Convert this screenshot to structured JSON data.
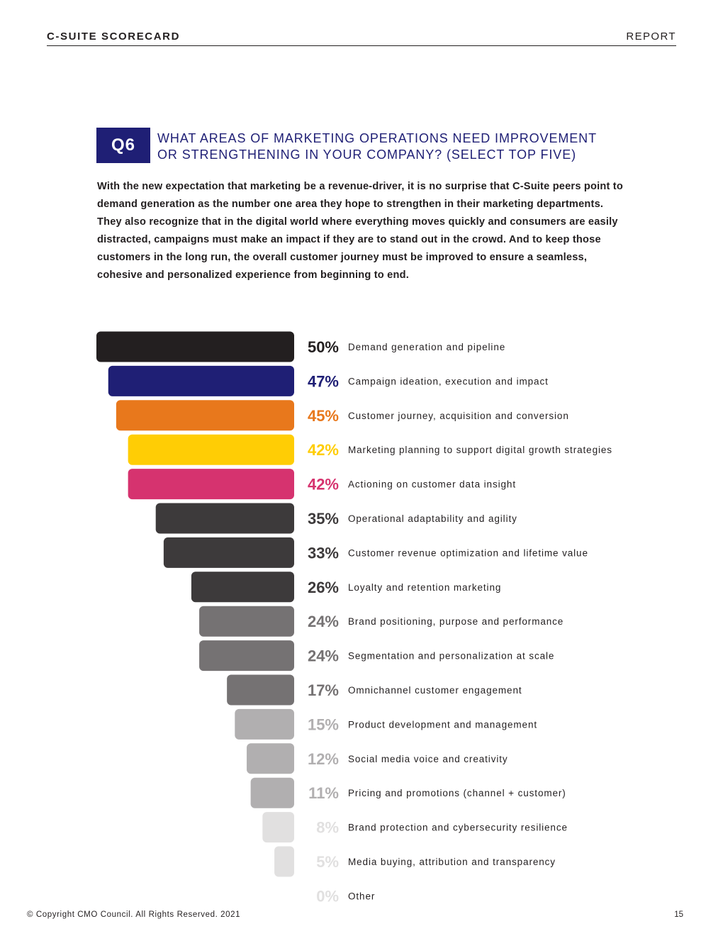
{
  "header": {
    "left": "C-SUITE SCORECARD",
    "right": "REPORT"
  },
  "question": {
    "badge": "Q6",
    "title": "WHAT AREAS OF MARKETING OPERATIONS NEED IMPROVEMENT\nOR STRENGTHENING IN YOUR COMPANY? (SELECT TOP FIVE)",
    "intro": "With the new expectation that marketing be a revenue-driver, it is no surprise that C-Suite peers point to demand generation as the number one area they hope to strengthen in their marketing departments. They also recognize that in the digital world where everything moves quickly and consumers are easily distracted, campaigns must make an impact if they are to stand out in the crowd. And to keep those customers in the long run, the overall customer journey must be improved to ensure a seamless, cohesive and personalized experience from beginning to end."
  },
  "colors": {
    "navy": "#1f1f75"
  },
  "chart_data": {
    "type": "bar",
    "orientation": "horizontal",
    "bar_alignment": "right-aligned",
    "categories": [
      "Demand generation and pipeline",
      "Campaign ideation, execution and impact",
      "Customer journey, acquisition and conversion",
      "Marketing planning to support digital growth strategies",
      "Actioning on customer data insight",
      "Operational adaptability and agility",
      "Customer revenue optimization and lifetime value",
      "Loyalty and retention marketing",
      "Brand positioning, purpose and performance",
      "Segmentation and personalization at scale",
      "Omnichannel customer engagement",
      "Product development and management",
      "Social media voice and creativity",
      "Pricing and promotions (channel + customer)",
      "Brand protection and cybersecurity resilience",
      "Media buying, attribution and transparency",
      "Other"
    ],
    "values": [
      50,
      47,
      45,
      42,
      42,
      35,
      33,
      26,
      24,
      24,
      17,
      15,
      12,
      11,
      8,
      5,
      0
    ],
    "labels": [
      "50%",
      "47%",
      "45%",
      "42%",
      "42%",
      "35%",
      "33%",
      "26%",
      "24%",
      "24%",
      "17%",
      "15%",
      "12%",
      "11%",
      "8%",
      "5%",
      "0%"
    ],
    "bar_colors": [
      "#231f20",
      "#1f1f75",
      "#e8781c",
      "#ffcd05",
      "#d6336f",
      "#3d3a3b",
      "#3d3a3b",
      "#3d3a3b",
      "#757273",
      "#757273",
      "#757273",
      "#b1afb0",
      "#b1afb0",
      "#b1afb0",
      "#e1e0e0",
      "#e1e0e0",
      "#e1e0e0"
    ],
    "label_colors": [
      "#231f20",
      "#1f1f75",
      "#e8781c",
      "#ffcd05",
      "#d6336f",
      "#3d3a3b",
      "#3d3a3b",
      "#3d3a3b",
      "#757273",
      "#757273",
      "#757273",
      "#b1afb0",
      "#b1afb0",
      "#b1afb0",
      "#e1e0e0",
      "#e1e0e0",
      "#e1e0e0"
    ],
    "xlim": [
      0,
      50
    ],
    "unit": "%",
    "title": "",
    "xlabel": "",
    "ylabel": ""
  },
  "footer": {
    "copyright": "© Copyright CMO Council. All Rights Reserved. 2021",
    "page_number": "15"
  }
}
